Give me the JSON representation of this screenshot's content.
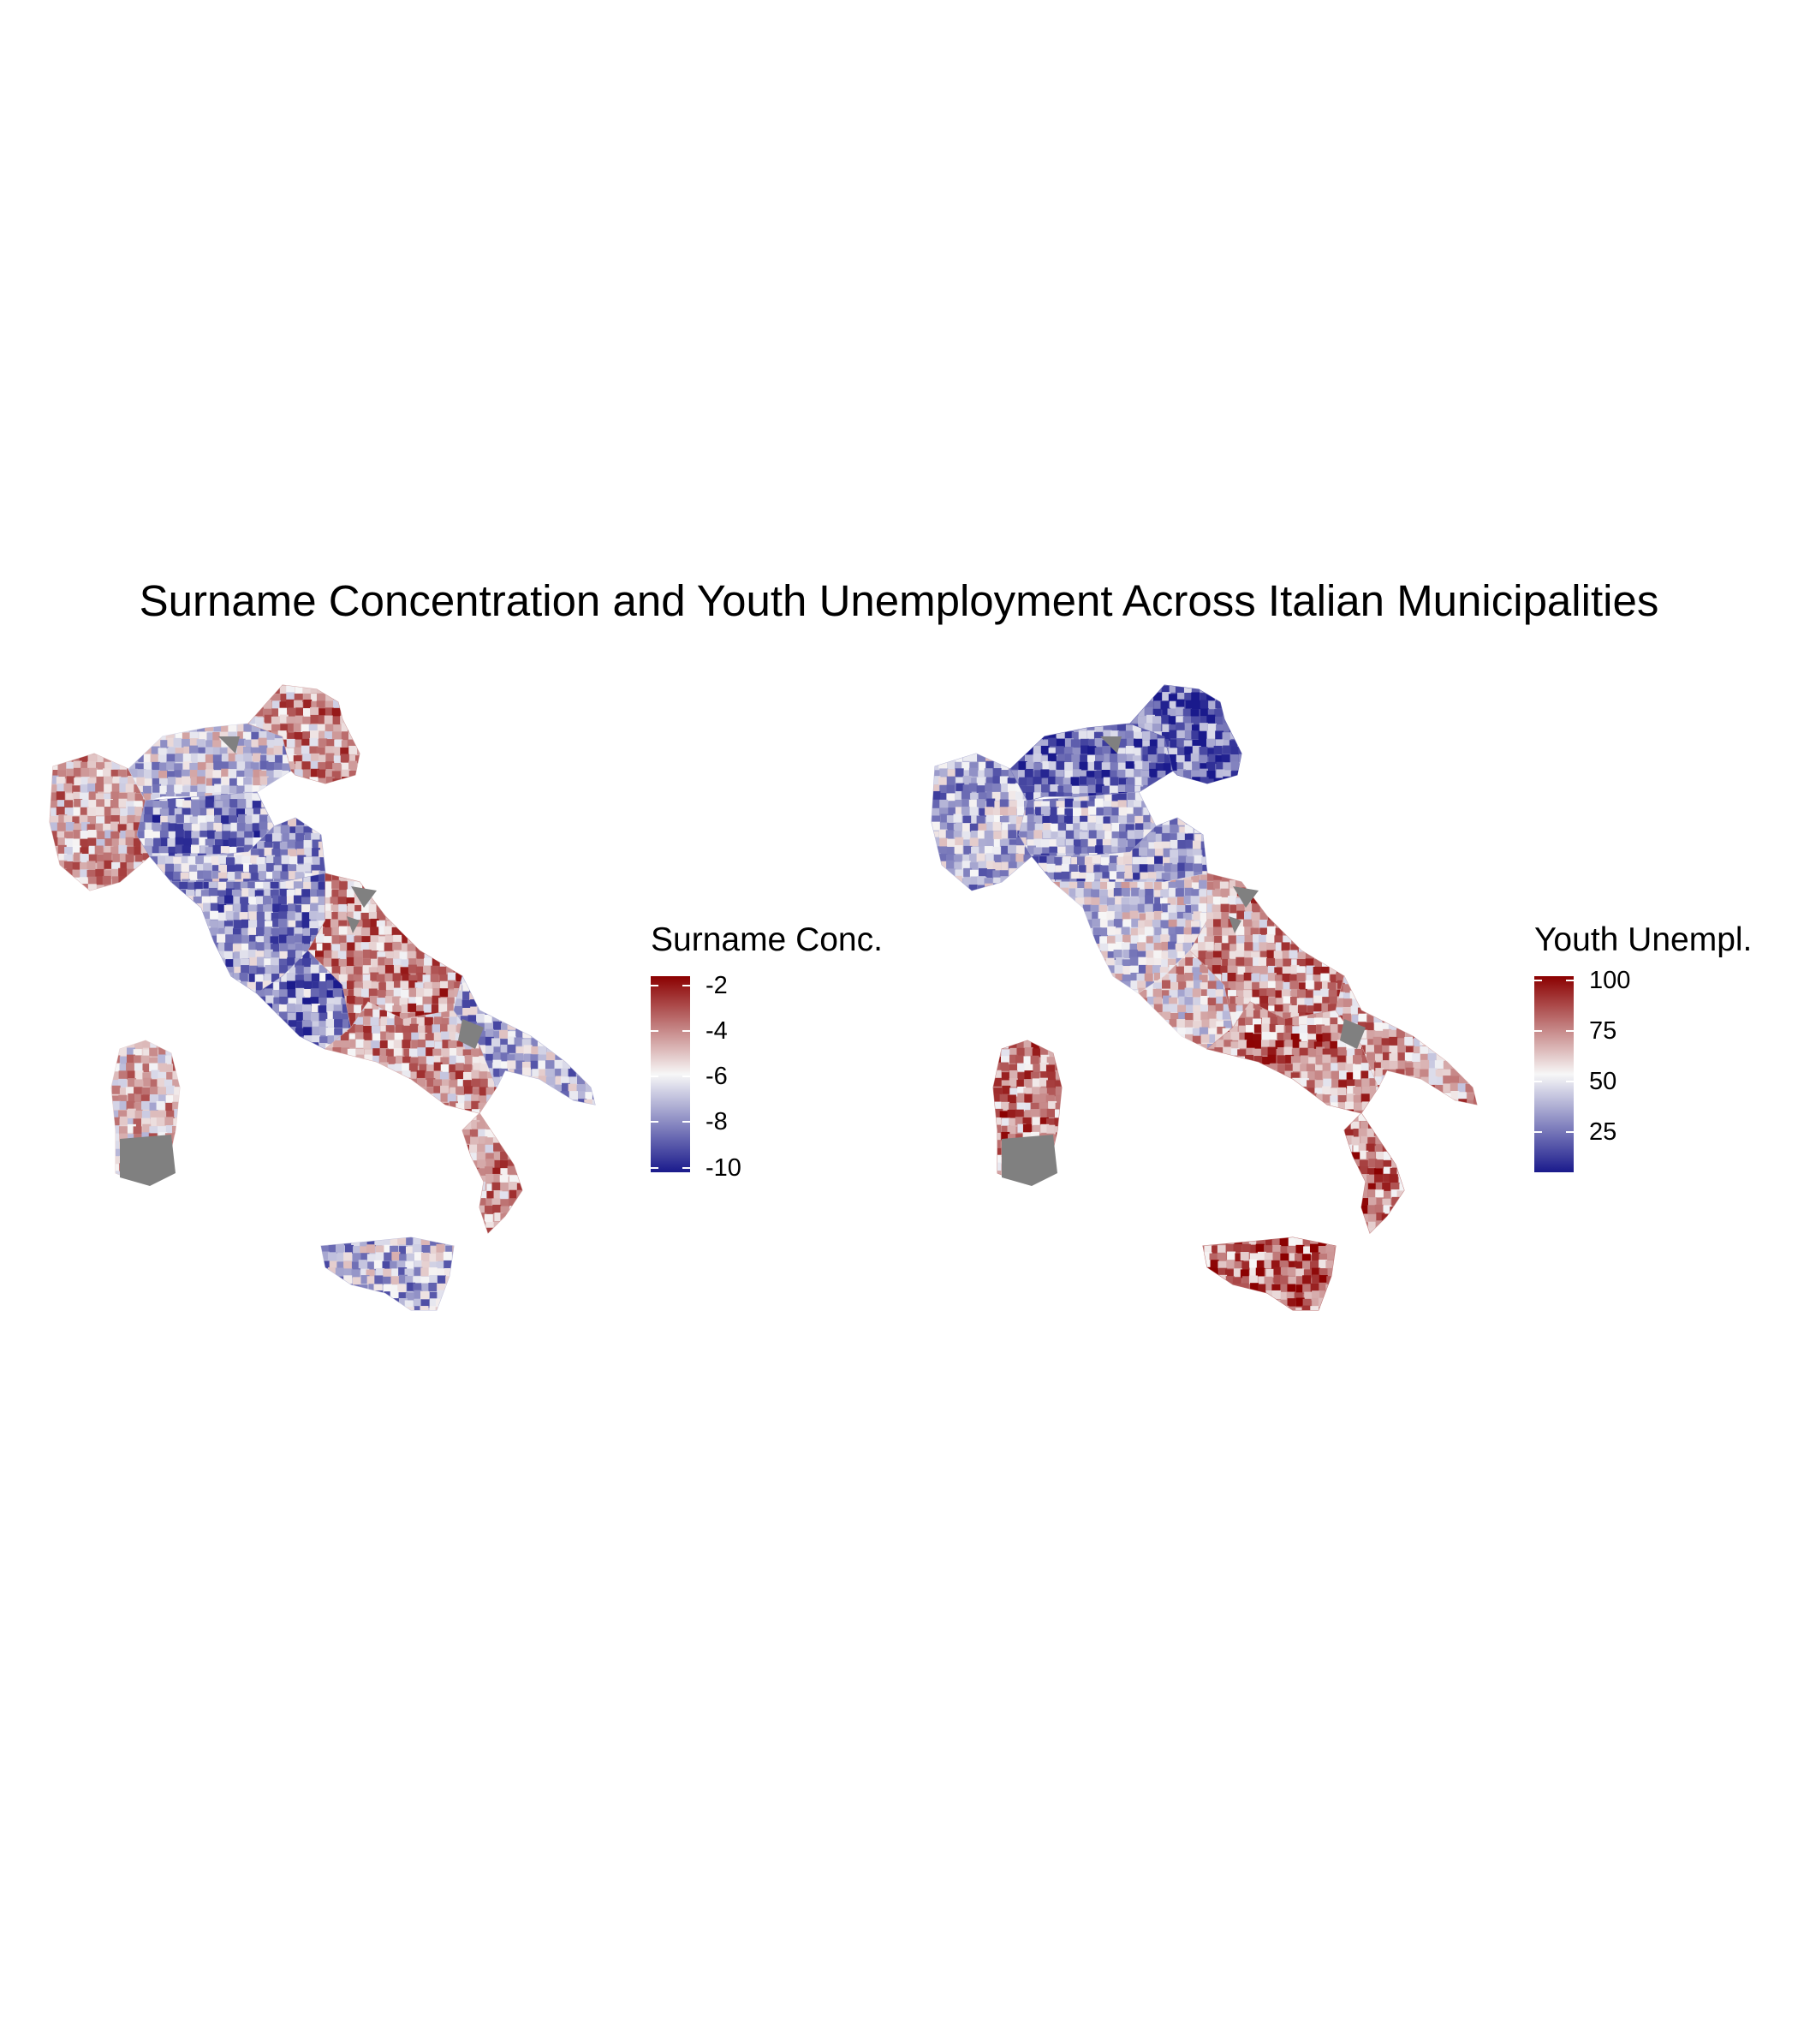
{
  "figure": {
    "title": "Surname Concentration and Youth Unemployment Across Italian Municipalities"
  },
  "panels": [
    {
      "legend_title": "Surname Conc.",
      "scale": {
        "min": -10.2,
        "max": -1.6
      },
      "ticks": [
        "-2",
        "-4",
        "-6",
        "-8",
        "-10"
      ],
      "tick_values": [
        -2,
        -4,
        -6,
        -8,
        -10
      ],
      "palette": {
        "low": "#1a1a8c",
        "mid": "#f7f7f7",
        "high": "#8b0000"
      },
      "missing_color": "#808080",
      "regions": [
        {
          "name": "Piedmont / Liguria west",
          "level": 0.25
        },
        {
          "name": "Lombardy north",
          "level": -0.15
        },
        {
          "name": "Lombardy south / Milan",
          "level": -0.45
        },
        {
          "name": "Trentino / Veneto",
          "level": 0.35
        },
        {
          "name": "Emilia-Romagna",
          "level": -0.3
        },
        {
          "name": "Tuscany",
          "level": -0.4
        },
        {
          "name": "Lazio coast",
          "level": -0.5
        },
        {
          "name": "Abruzzo / Molise",
          "level": 0.4
        },
        {
          "name": "Campania / Basilicata",
          "level": 0.3
        },
        {
          "name": "Apulia",
          "level": -0.3
        },
        {
          "name": "Calabria",
          "level": 0.35
        },
        {
          "name": "Sicily",
          "level": -0.25
        },
        {
          "name": "Sardinia",
          "level": 0.15
        }
      ]
    },
    {
      "legend_title": "Youth Unempl.",
      "scale": {
        "min": 5,
        "max": 102
      },
      "ticks": [
        "100",
        "75",
        "50",
        "25"
      ],
      "tick_values": [
        100,
        75,
        50,
        25
      ],
      "palette": {
        "low": "#1a1a8c",
        "mid": "#f7f7f7",
        "high": "#8b0000"
      },
      "missing_color": "#808080",
      "regions": [
        {
          "name": "Piedmont / Liguria west",
          "level": -0.3
        },
        {
          "name": "Lombardy north",
          "level": -0.6
        },
        {
          "name": "Lombardy south / Milan",
          "level": -0.35
        },
        {
          "name": "Trentino / Veneto",
          "level": -0.65
        },
        {
          "name": "Emilia-Romagna",
          "level": -0.4
        },
        {
          "name": "Tuscany",
          "level": -0.15
        },
        {
          "name": "Lazio coast",
          "level": 0.1
        },
        {
          "name": "Abruzzo / Molise",
          "level": 0.35
        },
        {
          "name": "Campania / Basilicata",
          "level": 0.45
        },
        {
          "name": "Apulia",
          "level": 0.3
        },
        {
          "name": "Calabria",
          "level": 0.5
        },
        {
          "name": "Sicily",
          "level": 0.55
        },
        {
          "name": "Sardinia",
          "level": 0.45
        }
      ]
    }
  ]
}
